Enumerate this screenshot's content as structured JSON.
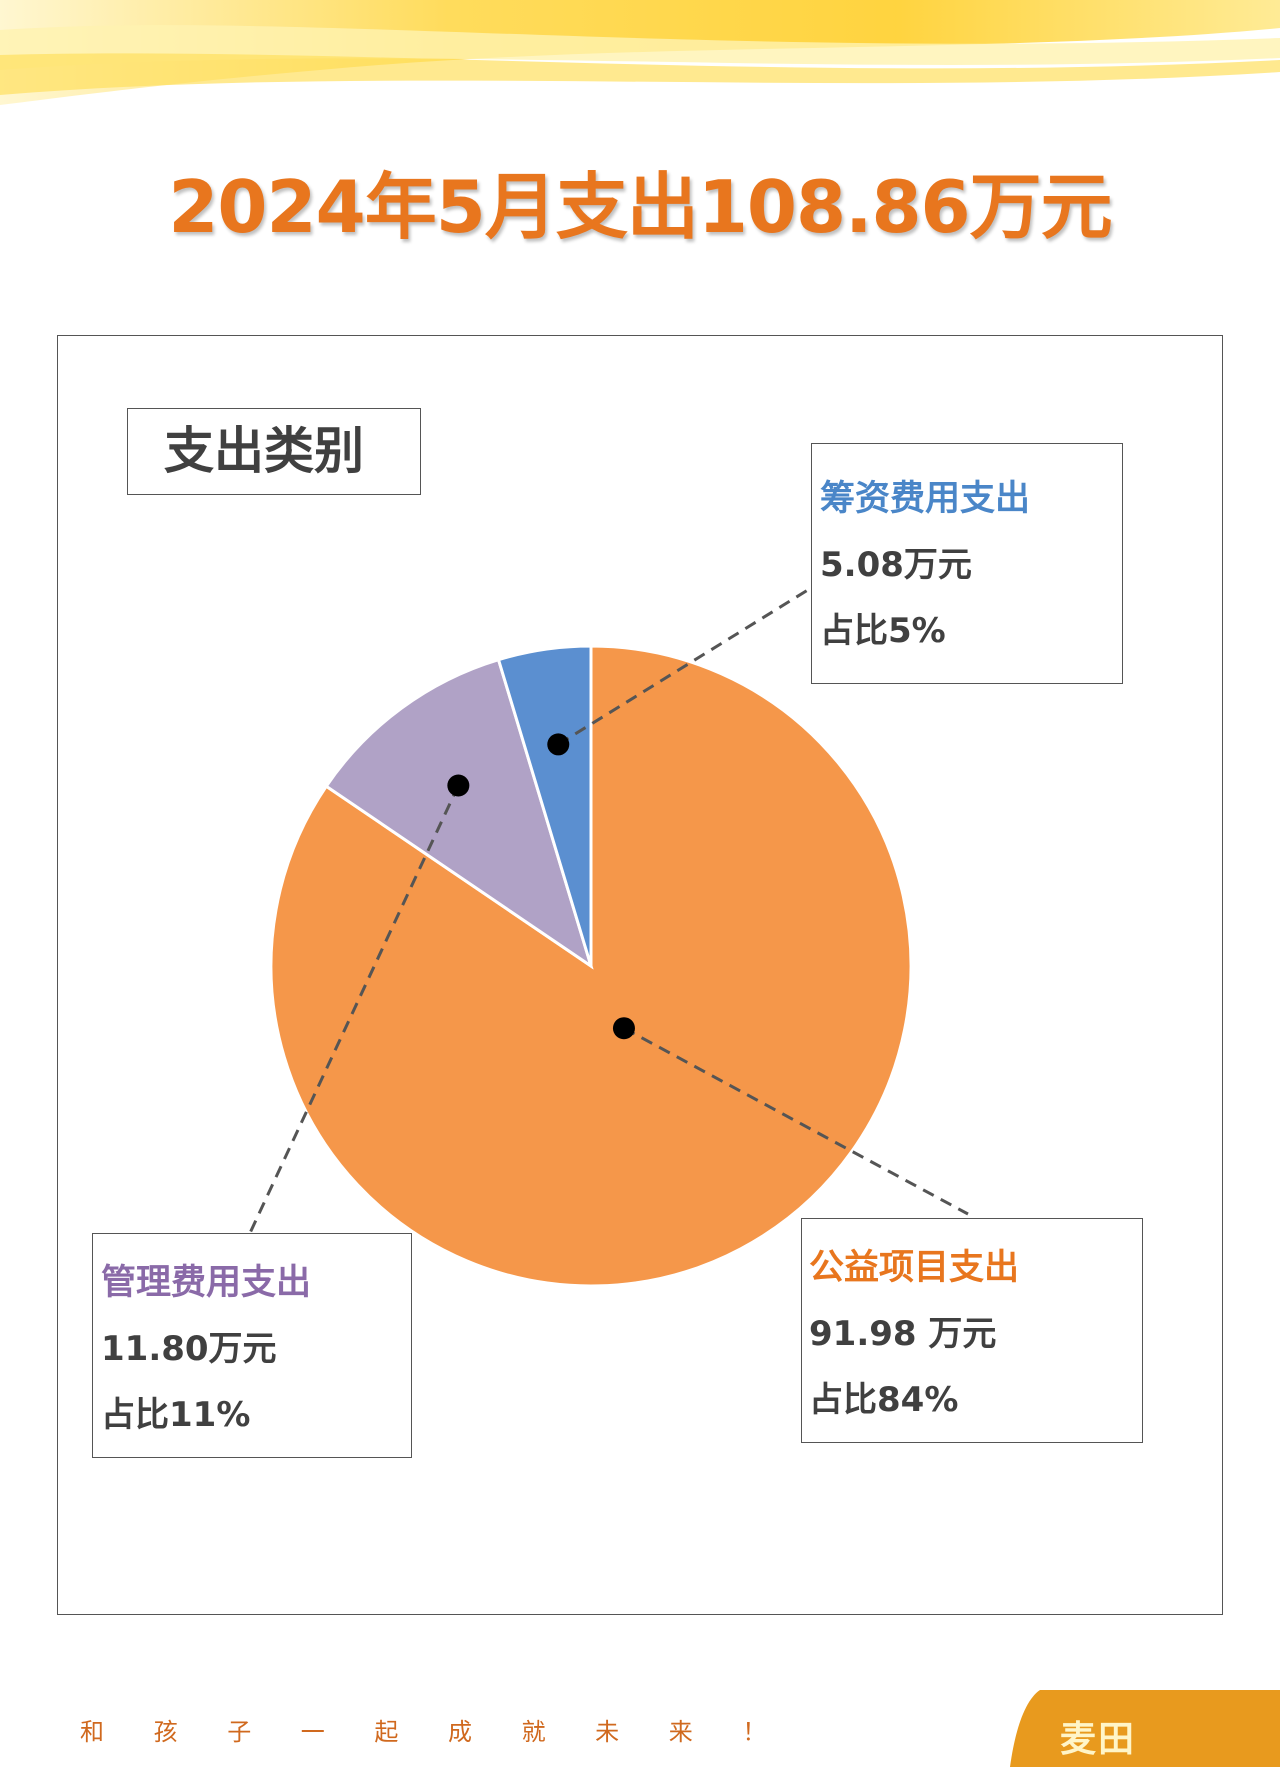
{
  "title": "2024年5月支出108.86万元",
  "chart_heading": "支出类别",
  "chart_data": {
    "type": "pie",
    "title": "支出类别",
    "slices": [
      {
        "name": "公益项目支出",
        "value": 91.98,
        "value_label": "91.98 万元",
        "percent_label": "占比84%",
        "color": "#f5974a"
      },
      {
        "name": "管理费用支出",
        "value": 11.8,
        "value_label": "11.80万元",
        "percent_label": "占比11%",
        "color": "#b0a2c6"
      },
      {
        "name": "筹资费用支出",
        "value": 5.08,
        "value_label": "5.08万元",
        "percent_label": "占比5%",
        "color": "#5b8fd0"
      }
    ],
    "start": "12 o'clock",
    "direction": "clockwise"
  },
  "footer": {
    "slogan": [
      "和",
      "孩",
      "子",
      "一",
      "起",
      "成",
      "就",
      "未",
      "来",
      "！"
    ],
    "logo": "麦田"
  },
  "colors": {
    "title": "#e8761e",
    "band_yellow": "#ffd23a",
    "logo_bg": "#e89a1e"
  }
}
